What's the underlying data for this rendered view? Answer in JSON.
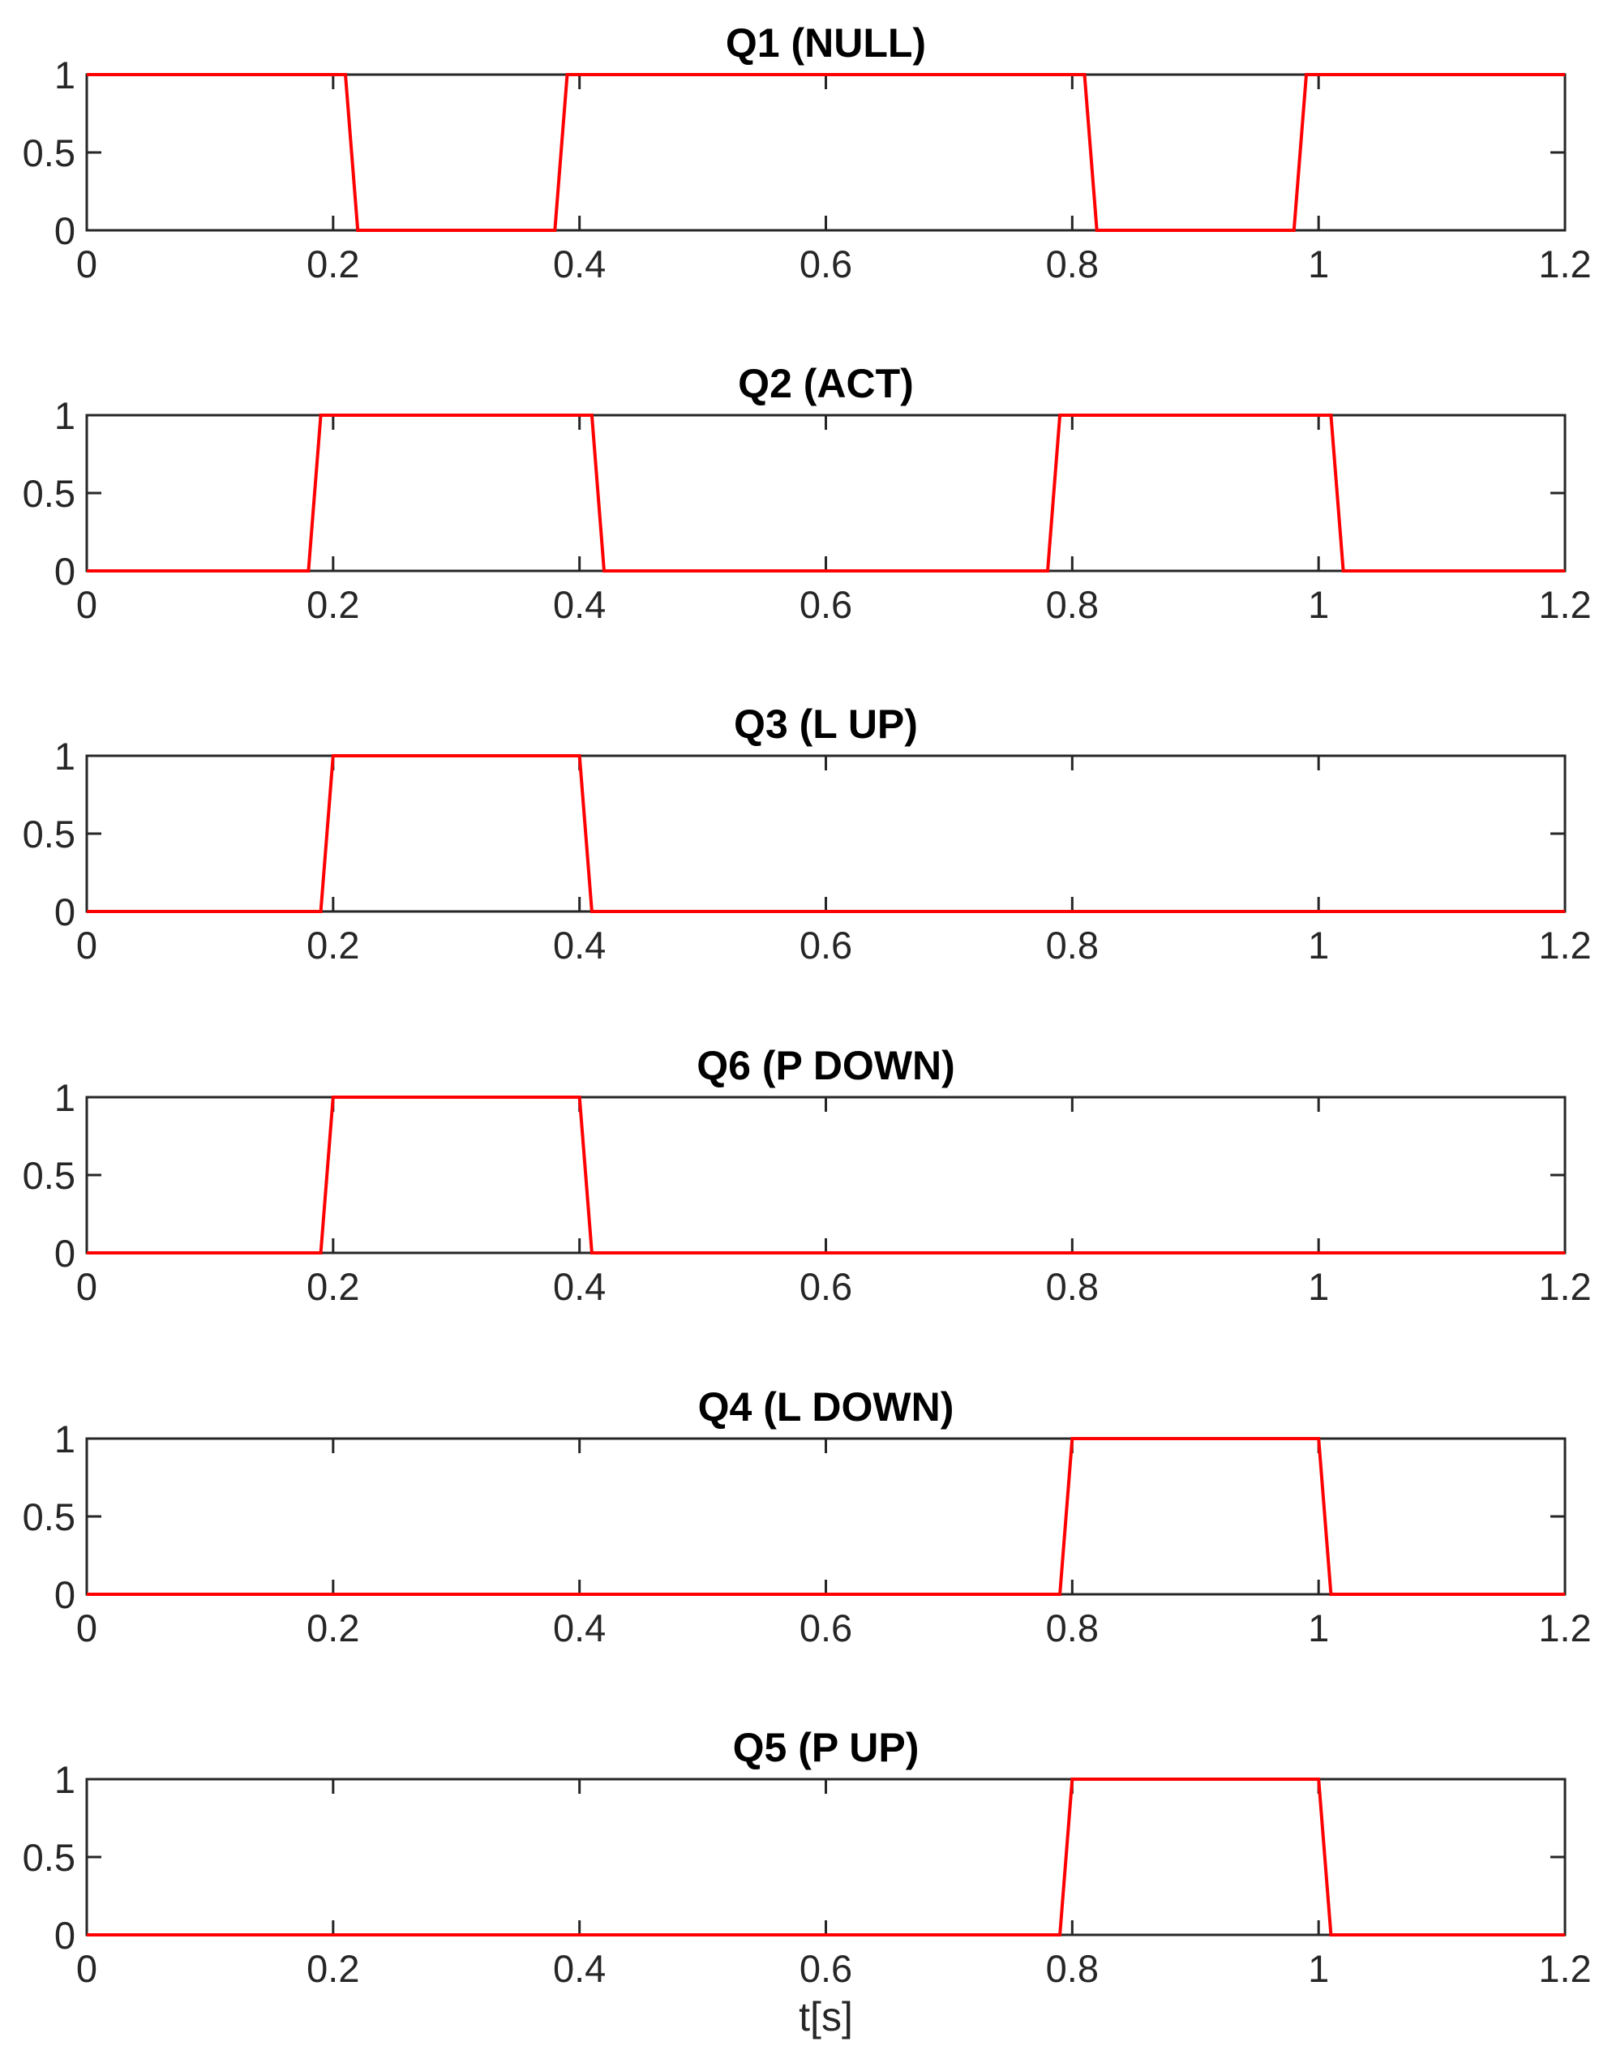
{
  "chart_data": [
    {
      "type": "line",
      "title": "Q1 (NULL)",
      "xlabel": "",
      "ylabel": "",
      "xlim": [
        0,
        1.2
      ],
      "ylim": [
        0,
        1
      ],
      "xticks": [
        "0",
        "0.2",
        "0.4",
        "0.6",
        "0.8",
        "1",
        "1.2"
      ],
      "yticks": [
        "0",
        "0.5",
        "1"
      ],
      "grid": false,
      "series": [
        {
          "color": "#ff0000",
          "x": [
            0,
            0.21,
            0.22,
            0.38,
            0.39,
            0.81,
            0.82,
            0.98,
            0.99,
            1.2
          ],
          "y": [
            1,
            1,
            0,
            0,
            1,
            1,
            0,
            0,
            1,
            1
          ]
        }
      ]
    },
    {
      "type": "line",
      "title": "Q2 (ACT)",
      "xlabel": "",
      "ylabel": "",
      "xlim": [
        0,
        1.2
      ],
      "ylim": [
        0,
        1
      ],
      "xticks": [
        "0",
        "0.2",
        "0.4",
        "0.6",
        "0.8",
        "1",
        "1.2"
      ],
      "yticks": [
        "0",
        "0.5",
        "1"
      ],
      "grid": false,
      "series": [
        {
          "color": "#ff0000",
          "x": [
            0,
            0.18,
            0.19,
            0.41,
            0.42,
            0.78,
            0.79,
            1.01,
            1.02,
            1.2
          ],
          "y": [
            0,
            0,
            1,
            1,
            0,
            0,
            1,
            1,
            0,
            0
          ]
        }
      ]
    },
    {
      "type": "line",
      "title": "Q3 (L UP)",
      "xlabel": "",
      "ylabel": "",
      "xlim": [
        0,
        1.2
      ],
      "ylim": [
        0,
        1
      ],
      "xticks": [
        "0",
        "0.2",
        "0.4",
        "0.6",
        "0.8",
        "1",
        "1.2"
      ],
      "yticks": [
        "0",
        "0.5",
        "1"
      ],
      "grid": false,
      "series": [
        {
          "color": "#ff0000",
          "x": [
            0,
            0.19,
            0.2,
            0.4,
            0.41,
            1.2
          ],
          "y": [
            0,
            0,
            1,
            1,
            0,
            0
          ]
        }
      ]
    },
    {
      "type": "line",
      "title": "Q6 (P DOWN)",
      "xlabel": "",
      "ylabel": "",
      "xlim": [
        0,
        1.2
      ],
      "ylim": [
        0,
        1
      ],
      "xticks": [
        "0",
        "0.2",
        "0.4",
        "0.6",
        "0.8",
        "1",
        "1.2"
      ],
      "yticks": [
        "0",
        "0.5",
        "1"
      ],
      "grid": false,
      "series": [
        {
          "color": "#ff0000",
          "x": [
            0,
            0.19,
            0.2,
            0.4,
            0.41,
            1.2
          ],
          "y": [
            0,
            0,
            1,
            1,
            0,
            0
          ]
        }
      ]
    },
    {
      "type": "line",
      "title": "Q4 (L DOWN)",
      "xlabel": "",
      "ylabel": "",
      "xlim": [
        0,
        1.2
      ],
      "ylim": [
        0,
        1
      ],
      "xticks": [
        "0",
        "0.2",
        "0.4",
        "0.6",
        "0.8",
        "1",
        "1.2"
      ],
      "yticks": [
        "0",
        "0.5",
        "1"
      ],
      "grid": false,
      "series": [
        {
          "color": "#ff0000",
          "x": [
            0,
            0.79,
            0.8,
            1.0,
            1.01,
            1.2
          ],
          "y": [
            0,
            0,
            1,
            1,
            0,
            0
          ]
        }
      ]
    },
    {
      "type": "line",
      "title": "Q5 (P UP)",
      "xlabel": "t[s]",
      "ylabel": "",
      "xlim": [
        0,
        1.2
      ],
      "ylim": [
        0,
        1
      ],
      "xticks": [
        "0",
        "0.2",
        "0.4",
        "0.6",
        "0.8",
        "1",
        "1.2"
      ],
      "yticks": [
        "0",
        "0.5",
        "1"
      ],
      "grid": false,
      "series": [
        {
          "color": "#ff0000",
          "x": [
            0,
            0.79,
            0.8,
            1.0,
            1.01,
            1.2
          ],
          "y": [
            0,
            0,
            1,
            1,
            0,
            0
          ]
        }
      ]
    }
  ]
}
